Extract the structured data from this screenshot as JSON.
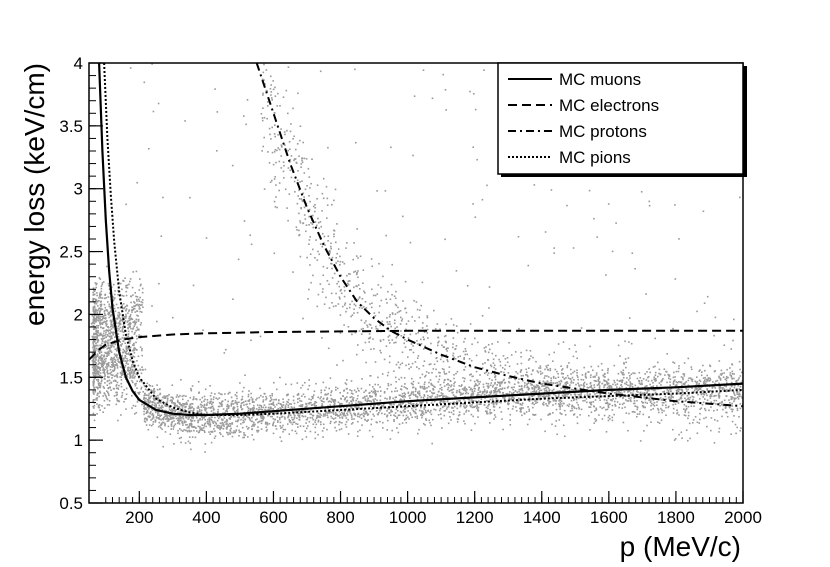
{
  "chart_data": {
    "type": "scatter",
    "xlabel": "p (MeV/c)",
    "ylabel": "energy loss (keV/cm)",
    "xlim": [
      50,
      2000
    ],
    "ylim": [
      0.5,
      4
    ],
    "x_ticks": [
      200,
      400,
      600,
      800,
      1000,
      1200,
      1400,
      1600,
      1800,
      2000
    ],
    "y_ticks": [
      0.5,
      1,
      1.5,
      2,
      2.5,
      3,
      3.5,
      4
    ],
    "grid": false,
    "legend_position": "top-right",
    "series": [
      {
        "name": "MC muons",
        "style": "solid",
        "points": [
          [
            80,
            4.0
          ],
          [
            90,
            3.3
          ],
          [
            100,
            2.75
          ],
          [
            110,
            2.35
          ],
          [
            120,
            2.05
          ],
          [
            140,
            1.7
          ],
          [
            160,
            1.5
          ],
          [
            180,
            1.39
          ],
          [
            200,
            1.32
          ],
          [
            250,
            1.24
          ],
          [
            300,
            1.21
          ],
          [
            350,
            1.2
          ],
          [
            400,
            1.2
          ],
          [
            500,
            1.21
          ],
          [
            600,
            1.23
          ],
          [
            700,
            1.25
          ],
          [
            800,
            1.27
          ],
          [
            1000,
            1.31
          ],
          [
            1200,
            1.34
          ],
          [
            1400,
            1.37
          ],
          [
            1600,
            1.4
          ],
          [
            1800,
            1.42
          ],
          [
            2000,
            1.45
          ]
        ]
      },
      {
        "name": "MC electrons",
        "style": "dashed",
        "points": [
          [
            50,
            1.64
          ],
          [
            80,
            1.72
          ],
          [
            100,
            1.76
          ],
          [
            150,
            1.8
          ],
          [
            200,
            1.82
          ],
          [
            300,
            1.84
          ],
          [
            400,
            1.85
          ],
          [
            600,
            1.86
          ],
          [
            800,
            1.865
          ],
          [
            1000,
            1.87
          ],
          [
            1400,
            1.87
          ],
          [
            2000,
            1.87
          ]
        ]
      },
      {
        "name": "MC protons",
        "style": "dash-dot",
        "points": [
          [
            550,
            4.0
          ],
          [
            600,
            3.6
          ],
          [
            650,
            3.2
          ],
          [
            700,
            2.85
          ],
          [
            750,
            2.55
          ],
          [
            800,
            2.3
          ],
          [
            850,
            2.1
          ],
          [
            900,
            1.97
          ],
          [
            950,
            1.87
          ],
          [
            1000,
            1.8
          ],
          [
            1100,
            1.68
          ],
          [
            1200,
            1.58
          ],
          [
            1300,
            1.51
          ],
          [
            1400,
            1.45
          ],
          [
            1500,
            1.41
          ],
          [
            1600,
            1.37
          ],
          [
            1700,
            1.34
          ],
          [
            1800,
            1.31
          ],
          [
            1900,
            1.29
          ],
          [
            2000,
            1.27
          ]
        ]
      },
      {
        "name": "MC pions",
        "style": "dotted",
        "points": [
          [
            95,
            4.0
          ],
          [
            105,
            3.4
          ],
          [
            115,
            2.95
          ],
          [
            125,
            2.58
          ],
          [
            140,
            2.18
          ],
          [
            160,
            1.84
          ],
          [
            180,
            1.63
          ],
          [
            200,
            1.5
          ],
          [
            250,
            1.33
          ],
          [
            300,
            1.26
          ],
          [
            350,
            1.22
          ],
          [
            400,
            1.2
          ],
          [
            500,
            1.2
          ],
          [
            600,
            1.21
          ],
          [
            800,
            1.24
          ],
          [
            1000,
            1.27
          ],
          [
            1200,
            1.3
          ],
          [
            1400,
            1.33
          ],
          [
            1600,
            1.35
          ],
          [
            1800,
            1.37
          ],
          [
            2000,
            1.4
          ]
        ]
      }
    ]
  },
  "legend": {
    "items": [
      {
        "label": "MC muons",
        "style": "solid"
      },
      {
        "label": "MC electrons",
        "style": "dashed"
      },
      {
        "label": "MC protons",
        "style": "dash-dot"
      },
      {
        "label": "MC pions",
        "style": "dotted"
      }
    ]
  },
  "colors": {
    "line": "#000000",
    "scatter": "#9a9a9a",
    "legend_bg": "#ffffff",
    "background": "#ffffff"
  }
}
